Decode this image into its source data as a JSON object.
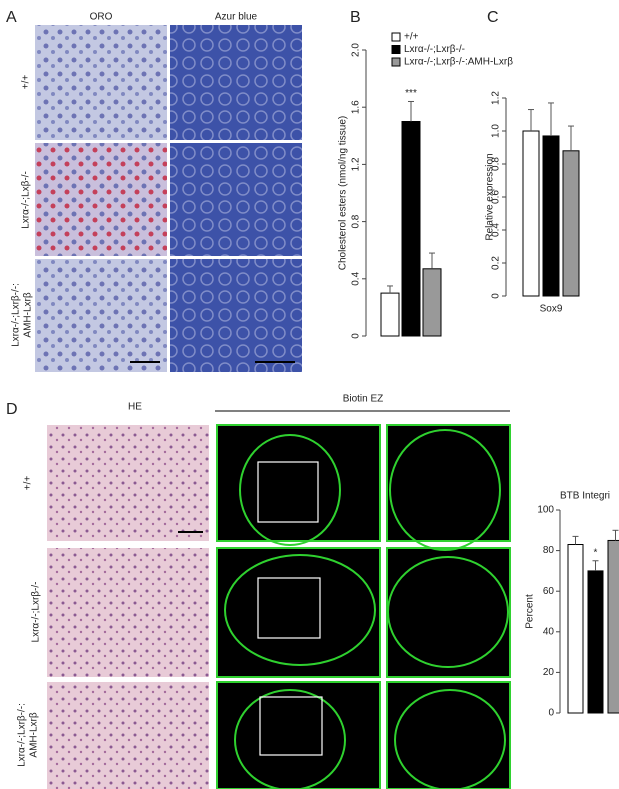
{
  "panels": {
    "A": {
      "letter": "A",
      "columns": [
        "ORO",
        "Azur blue"
      ],
      "rows": [
        "+/+",
        "Lxrα-/-;Lxβ-/-",
        "Lxrα-/-;Lxrβ-/-:",
        "AMH-Lxrβ"
      ]
    },
    "B": {
      "letter": "B"
    },
    "C": {
      "letter": "C"
    },
    "D": {
      "letter": "D",
      "columns": [
        "HE",
        "Biotin EZ"
      ],
      "rows": [
        "+/+",
        "Lxrα-/-;Lxrβ-/-",
        "Lxrα-/-;Lxrβ-/-:",
        "AMH-Lxrβ"
      ]
    }
  },
  "chart_data": [
    {
      "type": "bar",
      "ylabel": "Cholesterol esters (nmol/ng tissue)",
      "ylim": [
        0,
        2
      ],
      "yticks": [
        0,
        0.4,
        0.8,
        1.2,
        1.6,
        {
          "value": 2,
          "label": "2.0"
        }
      ],
      "series": [
        {
          "name": "+/+",
          "color": "#ffffff",
          "values": [
            0.3
          ],
          "errors": [
            0.05
          ]
        },
        {
          "name": "Lxrα-/-;Lxrβ-/-",
          "color": "#000000",
          "values": [
            1.5
          ],
          "errors": [
            0.14
          ],
          "annotation": "***"
        },
        {
          "name": "Lxrα-/-;Lxrβ-/-:AMH-Lxrβ",
          "color": "#999999",
          "values": [
            0.47
          ],
          "errors": [
            0.11
          ]
        }
      ]
    },
    {
      "type": "bar",
      "ylabel": "Relative expression",
      "categories": [
        "Sox9"
      ],
      "ylim": [
        0,
        1.2
      ],
      "yticks": [
        0,
        0.2,
        0.4,
        0.6,
        0.8,
        {
          "value": 1,
          "label": "1.0"
        },
        1.2
      ],
      "series": [
        {
          "color": "#ffffff",
          "values": [
            1.0
          ],
          "errors": [
            0.13
          ]
        },
        {
          "color": "#000000",
          "values": [
            0.97
          ],
          "errors": [
            0.2
          ]
        },
        {
          "color": "#999999",
          "values": [
            0.88
          ],
          "errors": [
            0.15
          ]
        }
      ]
    },
    {
      "type": "bar",
      "title": "BTB Integri",
      "ylabel": "Percent",
      "ylim": [
        0,
        100
      ],
      "yticks": [
        0,
        20,
        40,
        60,
        80,
        100
      ],
      "series": [
        {
          "color": "#ffffff",
          "values": [
            83
          ],
          "errors": [
            4
          ]
        },
        {
          "color": "#000000",
          "values": [
            70
          ],
          "errors": [
            5
          ],
          "annotation": "*"
        },
        {
          "color": "#999999",
          "values": [
            85
          ],
          "errors": [
            5
          ]
        }
      ]
    }
  ]
}
